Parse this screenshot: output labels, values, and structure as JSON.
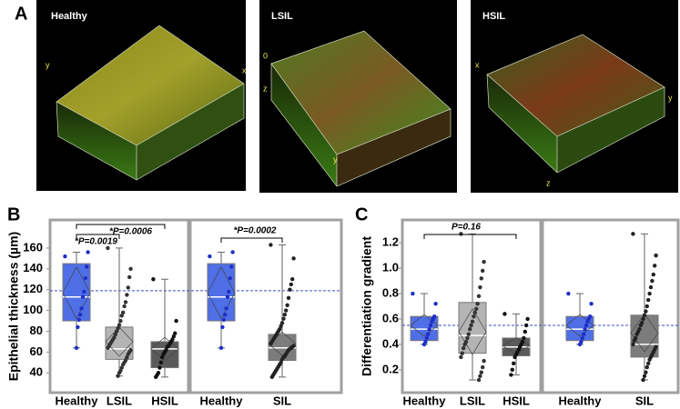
{
  "panel_a": {
    "label": "A",
    "images": [
      {
        "title": "Healthy",
        "axis_labels": [
          "y",
          "x"
        ]
      },
      {
        "title": "LSIL",
        "axis_labels": [
          "0",
          "z",
          "y"
        ]
      },
      {
        "title": "HSIL",
        "axis_labels": [
          "x",
          "y",
          "z"
        ]
      }
    ]
  },
  "chart_data": [
    {
      "type": "box",
      "panel_label": "B",
      "ylabel": "Epithelial thickness (µm)",
      "ylim": [
        21,
        187
      ],
      "yticks": [
        40,
        60,
        80,
        100,
        120,
        140,
        160
      ],
      "reference_line": 119,
      "facets": [
        {
          "groups": [
            {
              "name": "Healthy",
              "color": "#4f6fe6",
              "point_color": "#1f2fc8",
              "min": 64,
              "q1": 90,
              "median": 113,
              "q3": 145,
              "max": 156,
              "mean": 117,
              "points": [
                152,
                156,
                142,
                131,
                118,
                113,
                102,
                96,
                91,
                84,
                64
              ]
            },
            {
              "name": "LSIL",
              "color": "#b4b4b4",
              "point_color": "#333333",
              "min": 37,
              "q1": 53,
              "median": 63,
              "q3": 84,
              "max": 160,
              "mean": 70,
              "points": [
                160,
                140,
                132,
                122,
                115,
                108,
                104,
                98,
                95,
                90,
                86,
                83,
                80,
                77,
                74,
                72,
                70,
                68,
                66,
                64,
                62,
                60,
                58,
                55,
                52,
                50,
                48,
                45,
                42,
                40,
                37
              ]
            },
            {
              "name": "HSIL",
              "color": "#5a5a5a",
              "point_color": "#111111",
              "min": 36,
              "q1": 45,
              "median": 63,
              "q3": 70,
              "max": 130,
              "mean": 63,
              "points": [
                130,
                90,
                78,
                75,
                72,
                70,
                68,
                66,
                65,
                62,
                60,
                58,
                55,
                50,
                45,
                40,
                38,
                36
              ]
            }
          ],
          "annotations": [
            "*P=0.0019",
            "*P=0.0006"
          ]
        },
        {
          "groups": [
            {
              "name": "Healthy",
              "color": "#4f6fe6",
              "point_color": "#1f2fc8",
              "min": 64,
              "q1": 90,
              "median": 113,
              "q3": 145,
              "max": 156,
              "mean": 117,
              "points": [
                152,
                156,
                142,
                131,
                118,
                113,
                102,
                96,
                91,
                84,
                64
              ]
            },
            {
              "name": "SIL",
              "color": "#7c7c7c",
              "point_color": "#222222",
              "min": 36,
              "q1": 52,
              "median": 64,
              "q3": 77,
              "max": 163,
              "mean": 68,
              "points": [
                163,
                150,
                130,
                125,
                120,
                112,
                105,
                100,
                96,
                92,
                88,
                85,
                82,
                80,
                78,
                76,
                74,
                72,
                70,
                68,
                66,
                65,
                64,
                63,
                62,
                60,
                58,
                56,
                55,
                53,
                50,
                48,
                46,
                44,
                42,
                40,
                38,
                36
              ]
            }
          ],
          "annotations": [
            "*P=0.0002"
          ]
        }
      ]
    },
    {
      "type": "box",
      "panel_label": "C",
      "ylabel": "Differentiation gradient",
      "ylim": [
        0.02,
        1.38
      ],
      "yticks": [
        0.2,
        0.4,
        0.6,
        0.8,
        {
          "value": 1,
          "label": "1.0"
        },
        1.2
      ],
      "reference_line": 0.55,
      "facets": [
        {
          "groups": [
            {
              "name": "Healthy",
              "color": "#4f6fe6",
              "point_color": "#1f2fc8",
              "min": 0.4,
              "q1": 0.43,
              "median": 0.52,
              "q3": 0.62,
              "max": 0.8,
              "mean": 0.55,
              "points": [
                0.8,
                0.72,
                0.62,
                0.6,
                0.58,
                0.55,
                0.52,
                0.48,
                0.45,
                0.42,
                0.4
              ]
            },
            {
              "name": "LSIL",
              "color": "#b4b4b4",
              "point_color": "#333333",
              "min": 0.12,
              "q1": 0.33,
              "median": 0.47,
              "q3": 0.73,
              "max": 1.27,
              "mean": 0.5,
              "points": [
                1.27,
                1.05,
                0.98,
                0.92,
                0.85,
                0.78,
                0.72,
                0.68,
                0.65,
                0.62,
                0.58,
                0.55,
                0.52,
                0.48,
                0.45,
                0.42,
                0.4,
                0.37,
                0.33,
                0.3,
                0.27,
                0.22,
                0.18,
                0.15,
                0.12
              ]
            },
            {
              "name": "HSIL",
              "color": "#5a5a5a",
              "point_color": "#111111",
              "min": 0.16,
              "q1": 0.31,
              "median": 0.38,
              "q3": 0.45,
              "max": 0.64,
              "mean": 0.39,
              "points": [
                0.64,
                0.6,
                0.55,
                0.5,
                0.45,
                0.42,
                0.4,
                0.38,
                0.36,
                0.34,
                0.32,
                0.3,
                0.25,
                0.2,
                0.16
              ]
            }
          ],
          "annotations": [
            "P=0.16"
          ]
        },
        {
          "groups": [
            {
              "name": "Healthy",
              "color": "#4f6fe6",
              "point_color": "#1f2fc8",
              "min": 0.4,
              "q1": 0.43,
              "median": 0.52,
              "q3": 0.62,
              "max": 0.8,
              "mean": 0.55,
              "points": [
                0.8,
                0.72,
                0.62,
                0.6,
                0.58,
                0.55,
                0.52,
                0.48,
                0.45,
                0.42,
                0.4
              ]
            },
            {
              "name": "SIL",
              "color": "#7c7c7c",
              "point_color": "#222222",
              "min": 0.12,
              "q1": 0.3,
              "median": 0.4,
              "q3": 0.63,
              "max": 1.27,
              "mean": 0.49,
              "points": [
                1.27,
                1.1,
                1.02,
                0.95,
                0.9,
                0.85,
                0.8,
                0.75,
                0.7,
                0.66,
                0.63,
                0.6,
                0.57,
                0.55,
                0.52,
                0.5,
                0.48,
                0.45,
                0.43,
                0.4,
                0.38,
                0.36,
                0.34,
                0.32,
                0.3,
                0.28,
                0.25,
                0.22,
                0.18,
                0.15,
                0.12
              ]
            }
          ],
          "annotations": []
        }
      ]
    }
  ]
}
